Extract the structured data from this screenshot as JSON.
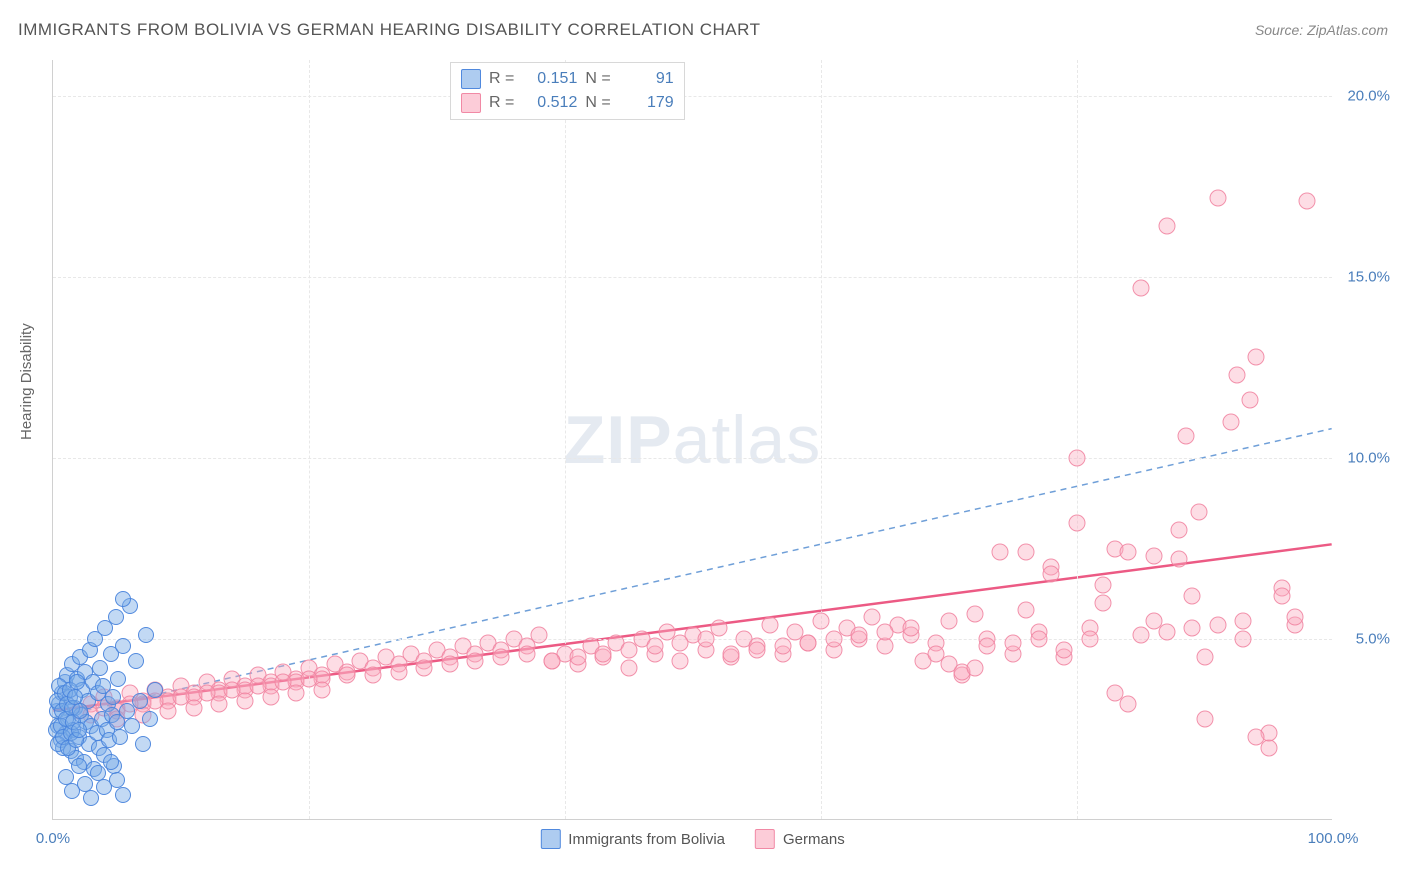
{
  "header": {
    "title": "IMMIGRANTS FROM BOLIVIA VS GERMAN HEARING DISABILITY CORRELATION CHART",
    "source": "Source: ZipAtlas.com"
  },
  "watermark": {
    "bold": "ZIP",
    "light": "atlas"
  },
  "chart": {
    "type": "scatter",
    "xlim": [
      0,
      100
    ],
    "ylim": [
      0,
      21
    ],
    "yticks": [
      {
        "v": 5,
        "label": "5.0%"
      },
      {
        "v": 10,
        "label": "10.0%"
      },
      {
        "v": 15,
        "label": "15.0%"
      },
      {
        "v": 20,
        "label": "20.0%"
      }
    ],
    "xticks": [
      {
        "v": 0,
        "label": "0.0%"
      },
      {
        "v": 100,
        "label": "100.0%"
      }
    ],
    "xgrid_at": [
      20,
      40,
      60,
      80
    ],
    "ylabel": "Hearing Disability",
    "background_color": "#ffffff",
    "grid_color": "#e8e8e8",
    "axis_color": "#d0d0d0",
    "tick_label_color": "#4a7ebb",
    "marker_size": 16,
    "series": [
      {
        "name": "Immigrants from Bolivia",
        "fill": "rgba(120,170,230,0.45)",
        "stroke": "rgba(70,130,220,0.9)",
        "R": "0.151",
        "N": "91",
        "trend": {
          "x1": 0,
          "y1": 2.8,
          "x2": 100,
          "y2": 10.8,
          "color": "#6f9fd8",
          "dash": "6,5",
          "width": 1.5
        },
        "points": [
          [
            0.3,
            3.0
          ],
          [
            0.4,
            2.6
          ],
          [
            0.5,
            3.2
          ],
          [
            0.6,
            2.2
          ],
          [
            0.7,
            3.5
          ],
          [
            0.8,
            2.0
          ],
          [
            0.9,
            3.8
          ],
          [
            1.0,
            2.4
          ],
          [
            1.1,
            4.0
          ],
          [
            1.2,
            2.8
          ],
          [
            1.3,
            3.4
          ],
          [
            1.4,
            1.9
          ],
          [
            1.5,
            4.3
          ],
          [
            1.6,
            2.5
          ],
          [
            1.7,
            3.1
          ],
          [
            1.8,
            1.7
          ],
          [
            1.9,
            3.9
          ],
          [
            2.0,
            2.3
          ],
          [
            2.1,
            4.5
          ],
          [
            2.2,
            2.9
          ],
          [
            2.3,
            3.6
          ],
          [
            2.4,
            1.6
          ],
          [
            2.5,
            4.1
          ],
          [
            2.6,
            2.7
          ],
          [
            2.7,
            3.3
          ],
          [
            2.8,
            2.1
          ],
          [
            2.9,
            4.7
          ],
          [
            3.0,
            2.6
          ],
          [
            3.1,
            3.8
          ],
          [
            3.2,
            1.4
          ],
          [
            3.3,
            5.0
          ],
          [
            3.4,
            2.4
          ],
          [
            3.5,
            3.5
          ],
          [
            3.6,
            2.0
          ],
          [
            3.7,
            4.2
          ],
          [
            3.8,
            2.8
          ],
          [
            3.9,
            3.7
          ],
          [
            4.0,
            1.8
          ],
          [
            4.1,
            5.3
          ],
          [
            4.2,
            2.5
          ],
          [
            4.3,
            3.2
          ],
          [
            4.4,
            2.2
          ],
          [
            4.5,
            4.6
          ],
          [
            4.6,
            2.9
          ],
          [
            4.7,
            3.4
          ],
          [
            4.8,
            1.5
          ],
          [
            4.9,
            5.6
          ],
          [
            5.0,
            2.7
          ],
          [
            5.1,
            3.9
          ],
          [
            5.2,
            2.3
          ],
          [
            5.5,
            4.8
          ],
          [
            5.8,
            3.0
          ],
          [
            6.0,
            5.9
          ],
          [
            6.2,
            2.6
          ],
          [
            6.5,
            4.4
          ],
          [
            6.8,
            3.3
          ],
          [
            7.0,
            2.1
          ],
          [
            7.3,
            5.1
          ],
          [
            7.6,
            2.8
          ],
          [
            8.0,
            3.6
          ],
          [
            1.0,
            1.2
          ],
          [
            1.5,
            0.8
          ],
          [
            2.0,
            1.5
          ],
          [
            2.5,
            1.0
          ],
          [
            3.0,
            0.6
          ],
          [
            3.5,
            1.3
          ],
          [
            4.0,
            0.9
          ],
          [
            4.5,
            1.6
          ],
          [
            5.0,
            1.1
          ],
          [
            5.5,
            0.7
          ],
          [
            0.2,
            2.5
          ],
          [
            0.3,
            3.3
          ],
          [
            0.4,
            2.1
          ],
          [
            0.5,
            3.7
          ],
          [
            0.6,
            2.6
          ],
          [
            0.7,
            3.0
          ],
          [
            0.8,
            2.3
          ],
          [
            0.9,
            3.5
          ],
          [
            1.0,
            2.8
          ],
          [
            1.1,
            3.2
          ],
          [
            1.2,
            2.0
          ],
          [
            1.3,
            3.6
          ],
          [
            1.4,
            2.4
          ],
          [
            1.5,
            3.1
          ],
          [
            1.6,
            2.7
          ],
          [
            1.7,
            3.4
          ],
          [
            1.8,
            2.2
          ],
          [
            1.9,
            3.8
          ],
          [
            2.0,
            2.5
          ],
          [
            2.1,
            3.0
          ],
          [
            5.5,
            6.1
          ]
        ]
      },
      {
        "name": "Germans",
        "fill": "rgba(250,170,190,0.4)",
        "stroke": "rgba(240,130,160,0.85)",
        "R": "0.512",
        "N": "179",
        "trend": {
          "x1": 0,
          "y1": 3.0,
          "x2": 100,
          "y2": 7.6,
          "color": "#ec5a84",
          "dash": "none",
          "width": 2.5
        },
        "points": [
          [
            3,
            3.2
          ],
          [
            4,
            3.4
          ],
          [
            5,
            3.1
          ],
          [
            6,
            3.5
          ],
          [
            7,
            3.3
          ],
          [
            8,
            3.6
          ],
          [
            9,
            3.4
          ],
          [
            10,
            3.7
          ],
          [
            11,
            3.5
          ],
          [
            12,
            3.8
          ],
          [
            13,
            3.6
          ],
          [
            14,
            3.9
          ],
          [
            15,
            3.7
          ],
          [
            16,
            4.0
          ],
          [
            17,
            3.8
          ],
          [
            18,
            4.1
          ],
          [
            19,
            3.9
          ],
          [
            20,
            4.2
          ],
          [
            21,
            4.0
          ],
          [
            22,
            4.3
          ],
          [
            23,
            4.1
          ],
          [
            24,
            4.4
          ],
          [
            25,
            4.2
          ],
          [
            26,
            4.5
          ],
          [
            27,
            4.3
          ],
          [
            28,
            4.6
          ],
          [
            29,
            4.4
          ],
          [
            30,
            4.7
          ],
          [
            31,
            4.5
          ],
          [
            32,
            4.8
          ],
          [
            33,
            4.6
          ],
          [
            34,
            4.9
          ],
          [
            35,
            4.7
          ],
          [
            36,
            5.0
          ],
          [
            37,
            4.8
          ],
          [
            38,
            5.1
          ],
          [
            39,
            4.4
          ],
          [
            40,
            4.6
          ],
          [
            41,
            4.3
          ],
          [
            42,
            4.8
          ],
          [
            43,
            4.5
          ],
          [
            44,
            4.9
          ],
          [
            45,
            4.2
          ],
          [
            46,
            5.0
          ],
          [
            47,
            4.6
          ],
          [
            48,
            5.2
          ],
          [
            49,
            4.4
          ],
          [
            50,
            5.1
          ],
          [
            51,
            4.7
          ],
          [
            52,
            5.3
          ],
          [
            53,
            4.5
          ],
          [
            54,
            5.0
          ],
          [
            55,
            4.8
          ],
          [
            56,
            5.4
          ],
          [
            57,
            4.6
          ],
          [
            58,
            5.2
          ],
          [
            59,
            4.9
          ],
          [
            60,
            5.5
          ],
          [
            61,
            4.7
          ],
          [
            62,
            5.3
          ],
          [
            63,
            5.0
          ],
          [
            64,
            5.6
          ],
          [
            65,
            4.8
          ],
          [
            66,
            5.4
          ],
          [
            67,
            5.1
          ],
          [
            68,
            4.4
          ],
          [
            69,
            4.9
          ],
          [
            70,
            5.5
          ],
          [
            71,
            4.0
          ],
          [
            72,
            5.7
          ],
          [
            73,
            5.0
          ],
          [
            74,
            7.4
          ],
          [
            75,
            4.6
          ],
          [
            76,
            5.8
          ],
          [
            77,
            5.2
          ],
          [
            78,
            7.0
          ],
          [
            79,
            4.5
          ],
          [
            80,
            10.0
          ],
          [
            81,
            5.3
          ],
          [
            82,
            6.5
          ],
          [
            83,
            7.5
          ],
          [
            84,
            3.2
          ],
          [
            85,
            14.7
          ],
          [
            86,
            5.5
          ],
          [
            87,
            16.4
          ],
          [
            88,
            8.0
          ],
          [
            89,
            6.2
          ],
          [
            90,
            4.5
          ],
          [
            91,
            17.2
          ],
          [
            92,
            11.0
          ],
          [
            93,
            5.0
          ],
          [
            94,
            12.8
          ],
          [
            95,
            2.0
          ],
          [
            96,
            6.4
          ],
          [
            97,
            5.4
          ],
          [
            98,
            17.1
          ],
          [
            92.5,
            12.3
          ],
          [
            93.5,
            11.6
          ],
          [
            88.5,
            10.6
          ],
          [
            89.5,
            8.5
          ],
          [
            5,
            3.0
          ],
          [
            7,
            3.2
          ],
          [
            9,
            3.3
          ],
          [
            11,
            3.4
          ],
          [
            13,
            3.5
          ],
          [
            15,
            3.6
          ],
          [
            17,
            3.7
          ],
          [
            19,
            3.8
          ],
          [
            21,
            3.9
          ],
          [
            23,
            4.0
          ],
          [
            25,
            4.0
          ],
          [
            27,
            4.1
          ],
          [
            29,
            4.2
          ],
          [
            31,
            4.3
          ],
          [
            33,
            4.4
          ],
          [
            35,
            4.5
          ],
          [
            37,
            4.6
          ],
          [
            39,
            4.4
          ],
          [
            41,
            4.5
          ],
          [
            43,
            4.6
          ],
          [
            45,
            4.7
          ],
          [
            47,
            4.8
          ],
          [
            49,
            4.9
          ],
          [
            51,
            5.0
          ],
          [
            53,
            4.6
          ],
          [
            55,
            4.7
          ],
          [
            57,
            4.8
          ],
          [
            59,
            4.9
          ],
          [
            61,
            5.0
          ],
          [
            63,
            5.1
          ],
          [
            65,
            5.2
          ],
          [
            67,
            5.3
          ],
          [
            69,
            4.6
          ],
          [
            71,
            4.1
          ],
          [
            73,
            4.8
          ],
          [
            75,
            4.9
          ],
          [
            77,
            5.0
          ],
          [
            79,
            4.7
          ],
          [
            81,
            5.0
          ],
          [
            83,
            3.5
          ],
          [
            85,
            5.1
          ],
          [
            87,
            5.2
          ],
          [
            89,
            5.3
          ],
          [
            91,
            5.4
          ],
          [
            93,
            5.5
          ],
          [
            95,
            2.4
          ],
          [
            97,
            5.6
          ],
          [
            84,
            7.4
          ],
          [
            86,
            7.3
          ],
          [
            88,
            7.2
          ],
          [
            2,
            3.0
          ],
          [
            3,
            2.9
          ],
          [
            4,
            3.1
          ],
          [
            5,
            2.8
          ],
          [
            6,
            3.2
          ],
          [
            7,
            2.9
          ],
          [
            8,
            3.3
          ],
          [
            9,
            3.0
          ],
          [
            10,
            3.4
          ],
          [
            11,
            3.1
          ],
          [
            12,
            3.5
          ],
          [
            13,
            3.2
          ],
          [
            14,
            3.6
          ],
          [
            15,
            3.3
          ],
          [
            16,
            3.7
          ],
          [
            17,
            3.4
          ],
          [
            18,
            3.8
          ],
          [
            19,
            3.5
          ],
          [
            20,
            3.9
          ],
          [
            21,
            3.6
          ],
          [
            76,
            7.4
          ],
          [
            78,
            6.8
          ],
          [
            80,
            8.2
          ],
          [
            82,
            6.0
          ],
          [
            90,
            2.8
          ],
          [
            94,
            2.3
          ],
          [
            96,
            6.2
          ],
          [
            70,
            4.3
          ],
          [
            72,
            4.2
          ]
        ]
      }
    ]
  },
  "stats_box": {
    "rows": [
      {
        "swatch": "blue",
        "r_label": "R =",
        "r_val": "0.151",
        "n_label": "N =",
        "n_val": "91"
      },
      {
        "swatch": "pink",
        "r_label": "R =",
        "r_val": "0.512",
        "n_label": "N =",
        "n_val": "179"
      }
    ]
  },
  "xlegend": [
    {
      "swatch": "blue",
      "label": "Immigrants from Bolivia"
    },
    {
      "swatch": "pink",
      "label": "Germans"
    }
  ]
}
